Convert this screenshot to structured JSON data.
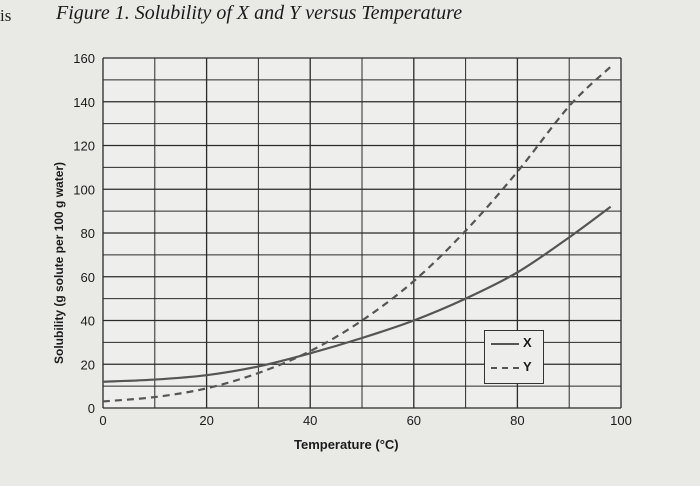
{
  "page_edge_text": "is",
  "chart_data": {
    "type": "line",
    "title": "Figure 1. Solubility of X and Y versus Temperature",
    "xlabel": "Temperature (°C)",
    "ylabel": "Solubility (g solute per 100 g water)",
    "xlim": [
      0,
      100
    ],
    "ylim": [
      0,
      160
    ],
    "x_ticks": [
      0,
      20,
      40,
      60,
      80,
      100
    ],
    "y_ticks": [
      0,
      20,
      40,
      60,
      80,
      100,
      120,
      140,
      160
    ],
    "grid": true,
    "legend_position": "bottom-right",
    "series": [
      {
        "name": "X",
        "style": "solid",
        "color": "#555555",
        "x": [
          0,
          10,
          20,
          30,
          40,
          50,
          60,
          70,
          80,
          90,
          98
        ],
        "y": [
          12,
          13,
          15,
          19,
          25,
          32,
          40,
          50,
          62,
          78,
          92
        ]
      },
      {
        "name": "Y",
        "style": "dashed",
        "color": "#555555",
        "x": [
          0,
          10,
          20,
          30,
          40,
          50,
          60,
          70,
          80,
          90,
          98
        ],
        "y": [
          3,
          5,
          9,
          16,
          26,
          40,
          58,
          81,
          108,
          138,
          156
        ]
      }
    ]
  }
}
